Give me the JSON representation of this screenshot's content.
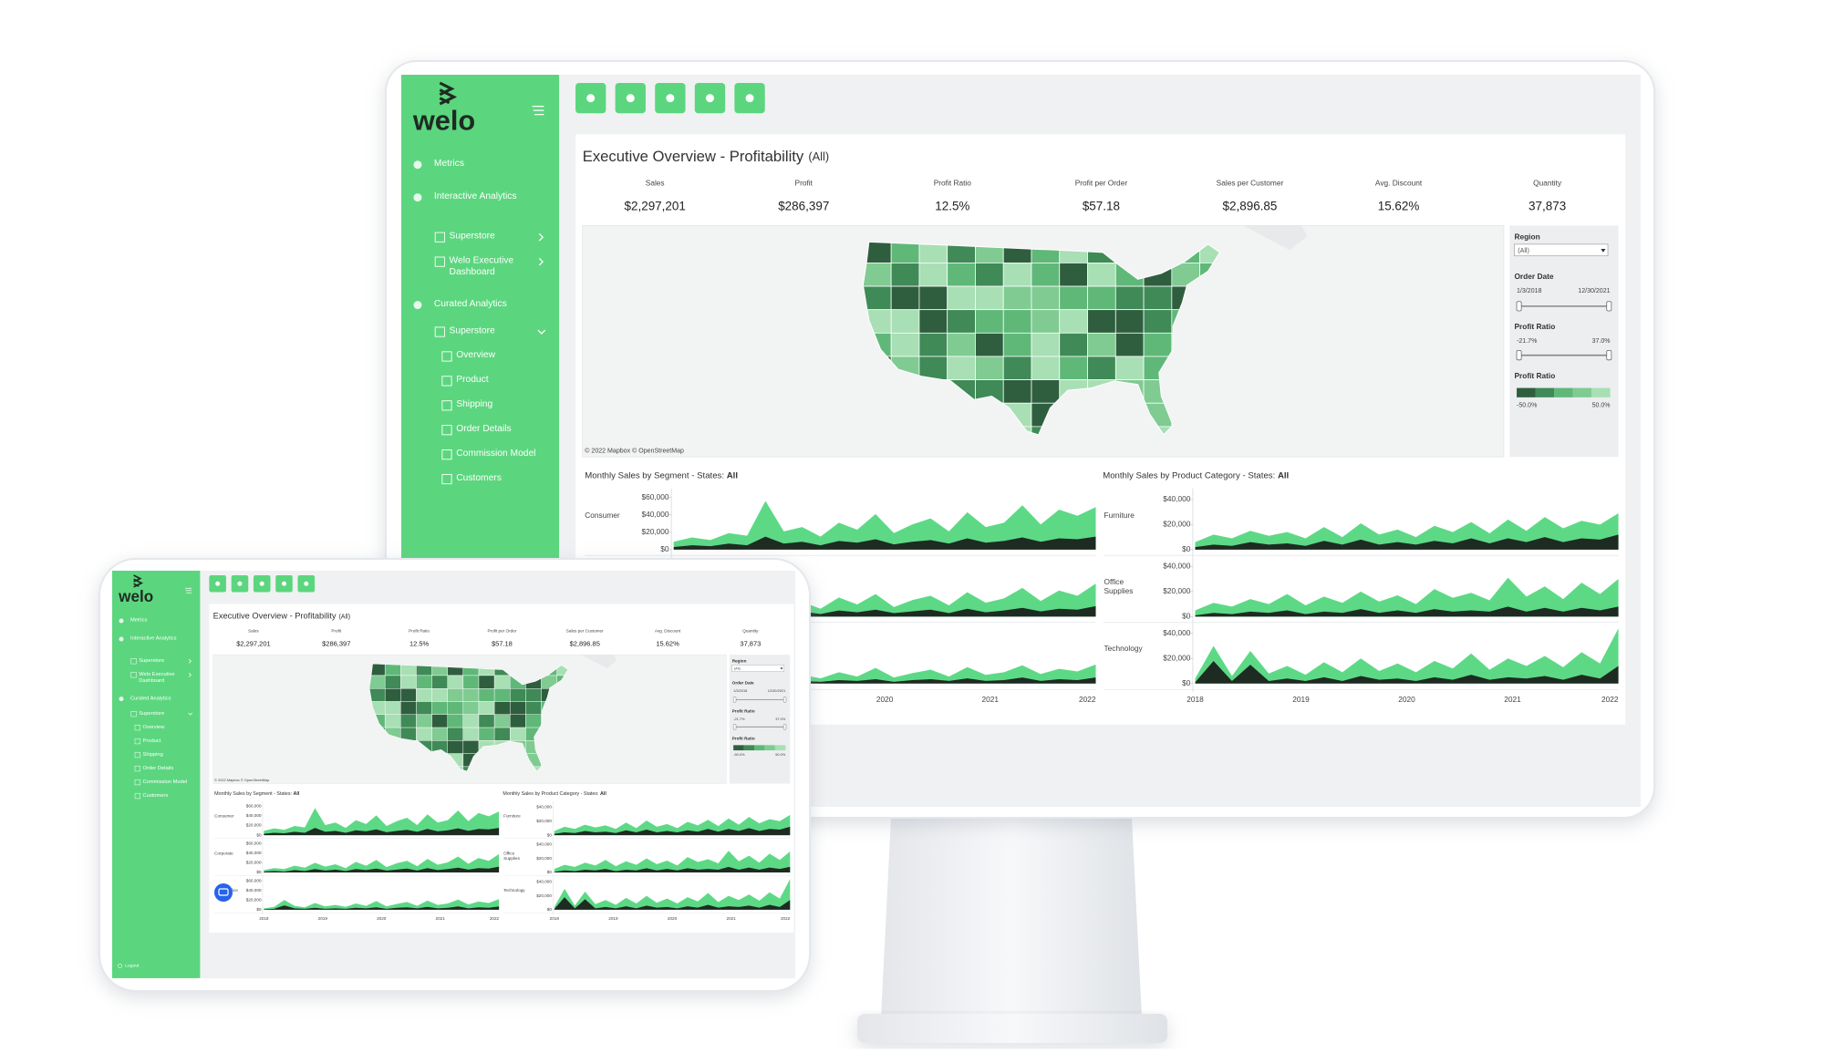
{
  "sidebar": {
    "logo": "welo",
    "nav": [
      {
        "label": "Metrics"
      },
      {
        "label": "Interactive Analytics",
        "children": [
          {
            "label": "Superstore"
          },
          {
            "label": "Welo Executive Dashboard"
          }
        ]
      },
      {
        "label": "Curated Analytics",
        "children": [
          {
            "label": "Superstore",
            "children": [
              {
                "label": "Overview"
              },
              {
                "label": "Product"
              },
              {
                "label": "Shipping"
              },
              {
                "label": "Order Details"
              },
              {
                "label": "Commission Model"
              },
              {
                "label": "Customers"
              }
            ]
          }
        ]
      }
    ],
    "footer": "Logout"
  },
  "dashboard": {
    "title": "Executive Overview - Profitability",
    "title_suffix": "(All)",
    "kpis": [
      {
        "label": "Sales",
        "value": "$2,297,201"
      },
      {
        "label": "Profit",
        "value": "$286,397"
      },
      {
        "label": "Profit Ratio",
        "value": "12.5%"
      },
      {
        "label": "Profit per Order",
        "value": "$57.18"
      },
      {
        "label": "Sales per Customer",
        "value": "$2,896.85"
      },
      {
        "label": "Avg. Discount",
        "value": "15.62%"
      },
      {
        "label": "Quantity",
        "value": "37,873"
      }
    ],
    "map_credit": "© 2022 Mapbox © OpenStreetMap",
    "filters": {
      "region_label": "Region",
      "region_value": "(All)",
      "order_date_label": "Order Date",
      "order_date_range": [
        "1/3/2018",
        "12/30/2021"
      ],
      "profit_ratio_label": "Profit Ratio",
      "profit_ratio_range": [
        "-21.7%",
        "37.0%"
      ],
      "legend_label": "Profit Ratio",
      "legend_range": [
        "-50.0%",
        "50.0%"
      ],
      "legend_colors": [
        "#2f5e3e",
        "#3f8a57",
        "#5fb878",
        "#7fcb92",
        "#a8dfb4"
      ]
    },
    "charts": [
      {
        "title": "Monthly Sales by Segment - States: ",
        "title_bold": "All",
        "color": "#5dd986",
        "dark_color": "#1e2b22",
        "ylim": [
          0,
          65000
        ],
        "yticks": [
          {
            "value": 0,
            "label": "$0"
          },
          {
            "value": 20000,
            "label": "$20,000"
          },
          {
            "value": 40000,
            "label": "$40,000"
          },
          {
            "value": 60000,
            "label": "$60,000"
          }
        ],
        "xticks": [
          "2018",
          "2019",
          "2020",
          "2021",
          "2022"
        ],
        "rows": [
          {
            "label": "Consumer",
            "values": [
              9000,
              14000,
              11000,
              19000,
              16000,
              56000,
              21000,
              26000,
              15000,
              31000,
              23000,
              41000,
              19000,
              29000,
              36000,
              21000,
              43000,
              26000,
              31000,
              51000,
              29000,
              46000,
              39000,
              49000
            ],
            "dark_values": [
              3000,
              5000,
              4000,
              7000,
              5000,
              15000,
              7000,
              9000,
              5000,
              10000,
              8000,
              12000,
              6000,
              9000,
              11000,
              7000,
              13000,
              8000,
              10000,
              14000,
              9000,
              13000,
              12000,
              15000
            ]
          },
          {
            "label": "Corporate",
            "values": [
              5000,
              9000,
              7000,
              14000,
              10000,
              20000,
              12000,
              17000,
              9000,
              22000,
              14000,
              26000,
              11000,
              19000,
              24000,
              13000,
              28000,
              16000,
              21000,
              33000,
              18000,
              30000,
              24000,
              38000
            ],
            "dark_values": [
              2000,
              3000,
              2000,
              5000,
              3000,
              7000,
              4000,
              6000,
              3000,
              7000,
              5000,
              8000,
              4000,
              6000,
              8000,
              4000,
              9000,
              5000,
              7000,
              10000,
              6000,
              9000,
              8000,
              12000
            ]
          },
          {
            "label": "Home Office",
            "values": [
              3000,
              6000,
              20000,
              8000,
              5000,
              14000,
              7000,
              10000,
              6000,
              13000,
              8000,
              18000,
              7000,
              12000,
              16000,
              8000,
              19000,
              10000,
              13000,
              21000,
              11000,
              17000,
              14000,
              22000
            ],
            "dark_values": [
              1000,
              2000,
              9000,
              3000,
              2000,
              4000,
              2000,
              3000,
              2000,
              4000,
              3000,
              5000,
              2000,
              4000,
              5000,
              3000,
              6000,
              3000,
              4000,
              7000,
              3000,
              5000,
              4000,
              7000
            ]
          }
        ]
      },
      {
        "title": "Monthly Sales by Product Category - States: ",
        "title_bold": "All",
        "color": "#5dd986",
        "dark_color": "#1e2b22",
        "ylim": [
          0,
          45000
        ],
        "yticks": [
          {
            "value": 0,
            "label": "$0"
          },
          {
            "value": 20000,
            "label": "$20,000"
          },
          {
            "value": 40000,
            "label": "$40,000"
          }
        ],
        "xticks": [
          "2018",
          "2019",
          "2020",
          "2021",
          "2022"
        ],
        "rows": [
          {
            "label": "Furniture",
            "values": [
              6000,
              12000,
              9000,
              15000,
              11000,
              14000,
              9000,
              18000,
              10000,
              21000,
              12000,
              16000,
              10000,
              19000,
              14000,
              22000,
              13000,
              24000,
              15000,
              26000,
              17000,
              23000,
              20000,
              29000
            ],
            "dark_values": [
              2000,
              4000,
              3000,
              6000,
              4000,
              5000,
              3000,
              7000,
              4000,
              8000,
              4000,
              6000,
              4000,
              7000,
              5000,
              9000,
              5000,
              9000,
              6000,
              10000,
              6000,
              9000,
              8000,
              12000
            ]
          },
          {
            "label": "Office Supplies",
            "values": [
              5000,
              11000,
              8000,
              14000,
              10000,
              18000,
              9000,
              16000,
              11000,
              20000,
              12000,
              17000,
              10000,
              22000,
              15000,
              19000,
              13000,
              31000,
              16000,
              24000,
              14000,
              27000,
              18000,
              30000
            ],
            "dark_values": [
              1000,
              3000,
              2000,
              4000,
              3000,
              5000,
              2000,
              4000,
              3000,
              6000,
              3000,
              5000,
              3000,
              6000,
              4000,
              5000,
              4000,
              8000,
              4000,
              7000,
              4000,
              7000,
              5000,
              8000
            ]
          },
          {
            "label": "Technology",
            "values": [
              4000,
              30000,
              6000,
              26000,
              8000,
              14000,
              7000,
              17000,
              9000,
              20000,
              10000,
              16000,
              9000,
              18000,
              12000,
              24000,
              11000,
              20000,
              14000,
              22000,
              13000,
              25000,
              16000,
              44000
            ],
            "dark_values": [
              1000,
              18000,
              2000,
              15000,
              2000,
              4000,
              2000,
              5000,
              2000,
              6000,
              3000,
              4000,
              2000,
              5000,
              3000,
              7000,
              3000,
              5000,
              4000,
              6000,
              3000,
              7000,
              4000,
              14000
            ]
          }
        ]
      }
    ]
  }
}
